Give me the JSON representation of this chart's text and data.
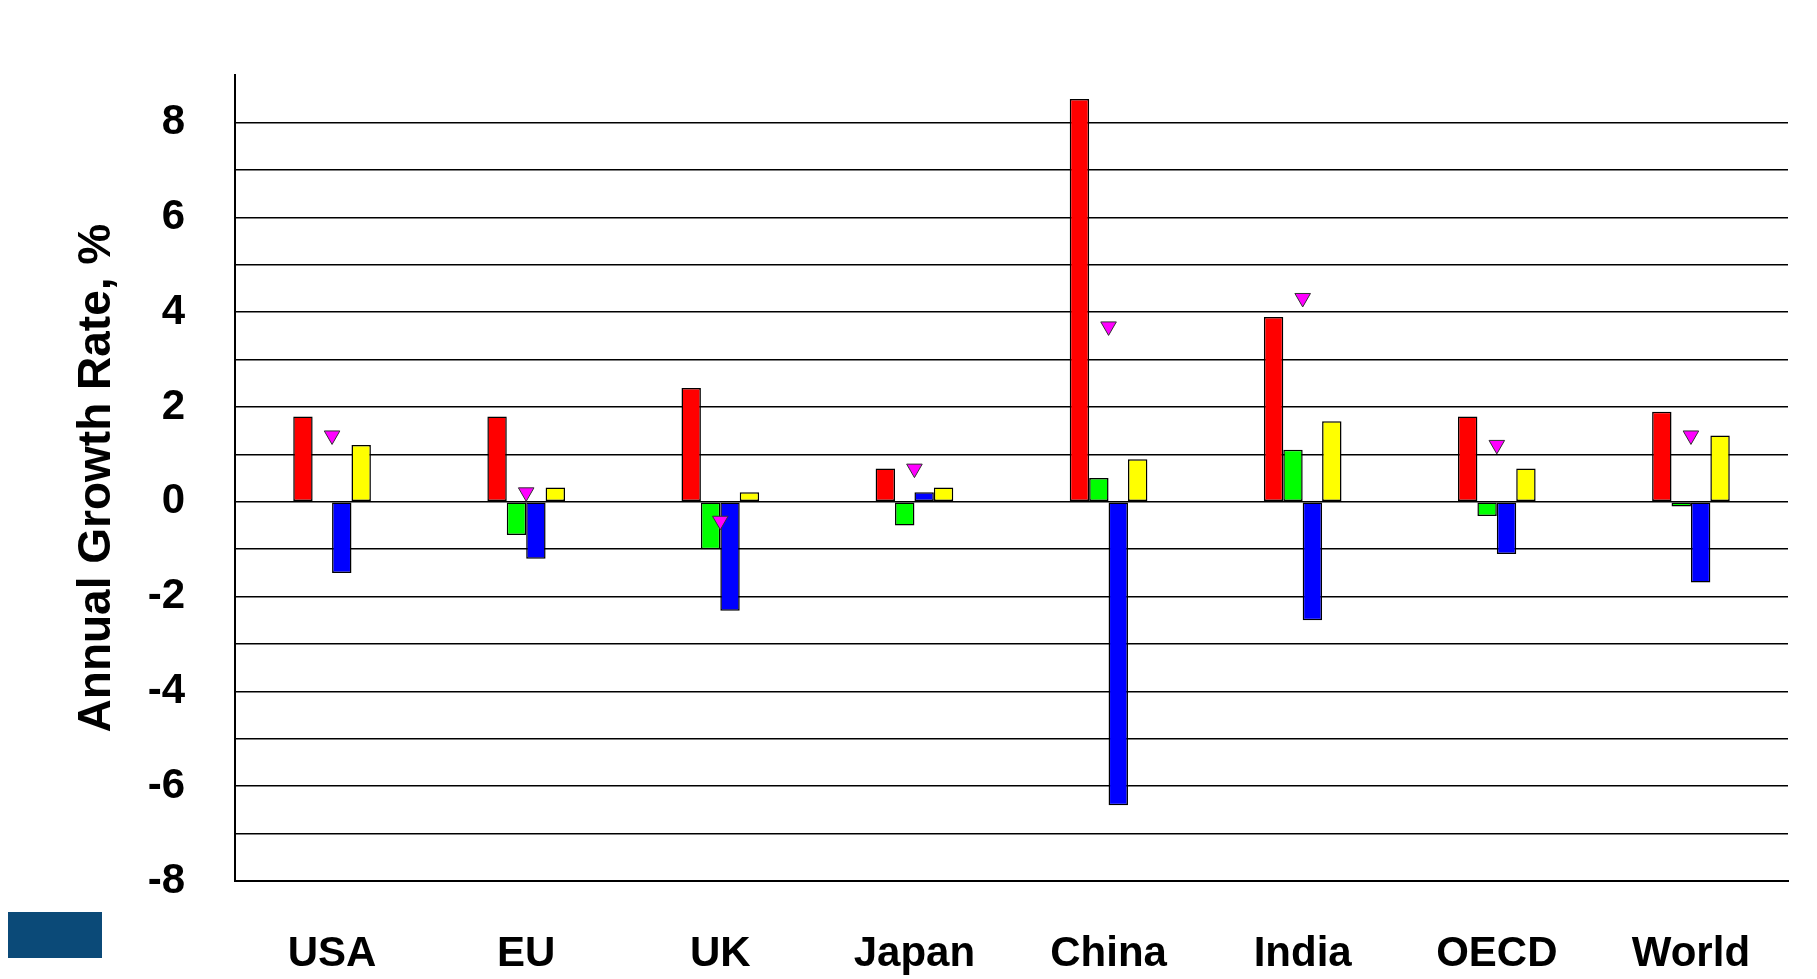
{
  "chart_data": {
    "type": "bar",
    "ylabel": "Annual Growth Rate, %",
    "categories": [
      "USA",
      "EU",
      "UK",
      "Japan",
      "China",
      "India",
      "OECD",
      "World"
    ],
    "series": [
      {
        "color": "#ff0000",
        "values": [
          1.8,
          1.8,
          2.4,
          0.7,
          8.5,
          3.9,
          1.8,
          1.9
        ]
      },
      {
        "color": "#00ff00",
        "values": [
          0,
          -0.7,
          -1.0,
          -0.5,
          0.5,
          1.1,
          -0.3,
          -0.1
        ]
      },
      {
        "color": "#0000ff",
        "values": [
          -1.5,
          -1.2,
          -2.3,
          0.2,
          -6.4,
          -2.5,
          -1.1,
          -1.7
        ]
      },
      {
        "color": "#ffff00",
        "values": [
          1.2,
          0.3,
          0.2,
          0.3,
          0.9,
          1.7,
          0.7,
          1.4
        ]
      },
      {
        "type": "scatter",
        "color": "#ff00ff",
        "marker": "triangle",
        "x": [
          "USA",
          "EU",
          "UK",
          "Japan",
          "China",
          "India",
          "OECD",
          "World"
        ],
        "values": [
          1.4,
          0.2,
          -0.4,
          0.7,
          3.7,
          4.3,
          1.2,
          1.4
        ]
      }
    ],
    "ylim": [
      -8,
      9
    ],
    "yticks": [
      -8,
      {
        "value": -7,
        "label": null
      },
      -6,
      {
        "value": -5,
        "label": null
      },
      -4,
      {
        "value": -3,
        "label": null
      },
      -2,
      {
        "value": -1,
        "label": null
      },
      0,
      {
        "value": 1,
        "label": null
      },
      2,
      {
        "value": 3,
        "label": null
      },
      4,
      {
        "value": 5,
        "label": null
      },
      6,
      {
        "value": 7,
        "label": null
      },
      8
    ],
    "grid": "y",
    "legend": false
  }
}
